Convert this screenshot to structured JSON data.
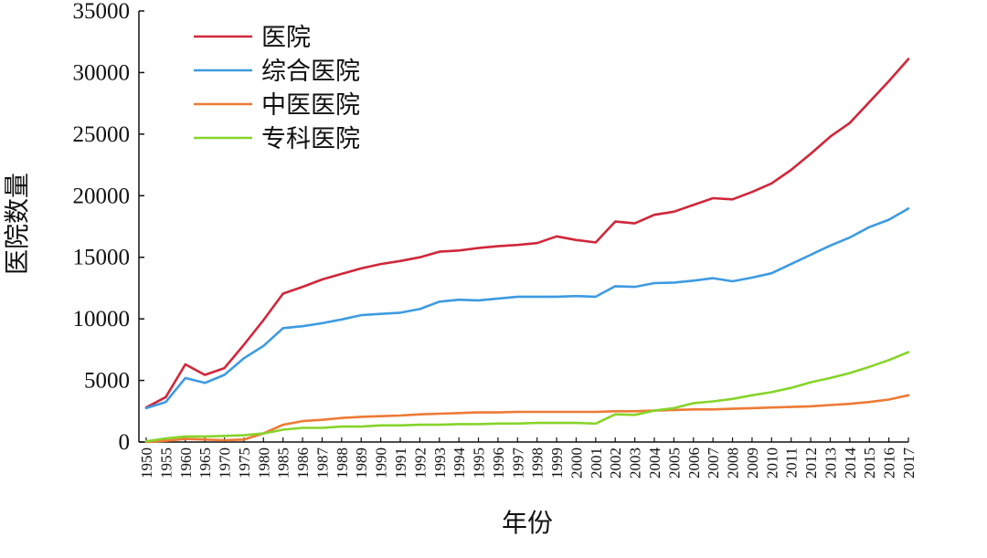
{
  "chart_data": {
    "type": "line",
    "xlabel": "年份",
    "ylabel": "医院数量",
    "ylim": [
      0,
      35000
    ],
    "yticks": [
      0,
      5000,
      10000,
      15000,
      20000,
      25000,
      30000,
      35000
    ],
    "ytick_labels": [
      "0",
      "5000",
      "10000",
      "15000",
      "20000",
      "25000",
      "30000",
      "35000"
    ],
    "categories": [
      "1950",
      "1955",
      "1960",
      "1965",
      "1970",
      "1975",
      "1980",
      "1985",
      "1986",
      "1987",
      "1988",
      "1989",
      "1990",
      "1991",
      "1992",
      "1993",
      "1994",
      "1995",
      "1996",
      "1997",
      "1998",
      "1999",
      "2000",
      "2001",
      "2002",
      "2003",
      "2004",
      "2005",
      "2006",
      "2007",
      "2008",
      "2009",
      "2010",
      "2011",
      "2012",
      "2013",
      "2014",
      "2015",
      "2016",
      "2017"
    ],
    "grid": false,
    "legend_position": "top-left",
    "series": [
      {
        "name": "医院",
        "color": "#d0273a",
        "values": [
          2800,
          3650,
          6300,
          5450,
          6000,
          7900,
          9900,
          12050,
          12600,
          13200,
          13650,
          14100,
          14450,
          14700,
          15000,
          15450,
          15550,
          15750,
          15900,
          16000,
          16150,
          16700,
          16400,
          16200,
          17900,
          17750,
          18450,
          18700,
          19250,
          19800,
          19700,
          20300,
          21000,
          22100,
          23400,
          24800,
          25900,
          27600,
          29300,
          31100
        ]
      },
      {
        "name": "综合医院",
        "color": "#3d9be0",
        "values": [
          2750,
          3250,
          5200,
          4800,
          5450,
          6800,
          7800,
          9250,
          9400,
          9650,
          9950,
          10300,
          10400,
          10500,
          10800,
          11400,
          11550,
          11500,
          11650,
          11800,
          11800,
          11800,
          11850,
          11800,
          12650,
          12600,
          12900,
          12950,
          13100,
          13300,
          13050,
          13350,
          13700,
          14450,
          15200,
          15950,
          16600,
          17450,
          18050,
          18950
        ]
      },
      {
        "name": "中医医院",
        "color": "#ee7a35",
        "values": [
          0,
          100,
          250,
          200,
          150,
          200,
          700,
          1400,
          1700,
          1800,
          1950,
          2050,
          2100,
          2150,
          2250,
          2300,
          2350,
          2400,
          2400,
          2450,
          2450,
          2450,
          2450,
          2450,
          2500,
          2500,
          2550,
          2600,
          2650,
          2650,
          2700,
          2750,
          2800,
          2850,
          2900,
          3000,
          3100,
          3250,
          3450,
          3800
        ]
      },
      {
        "name": "专科医院",
        "color": "#86d42a",
        "values": [
          50,
          300,
          450,
          450,
          500,
          550,
          700,
          1000,
          1150,
          1150,
          1250,
          1250,
          1350,
          1350,
          1400,
          1400,
          1450,
          1450,
          1500,
          1500,
          1550,
          1550,
          1550,
          1500,
          2250,
          2200,
          2550,
          2750,
          3150,
          3300,
          3500,
          3800,
          4050,
          4400,
          4850,
          5200,
          5600,
          6100,
          6650,
          7300
        ]
      }
    ]
  }
}
